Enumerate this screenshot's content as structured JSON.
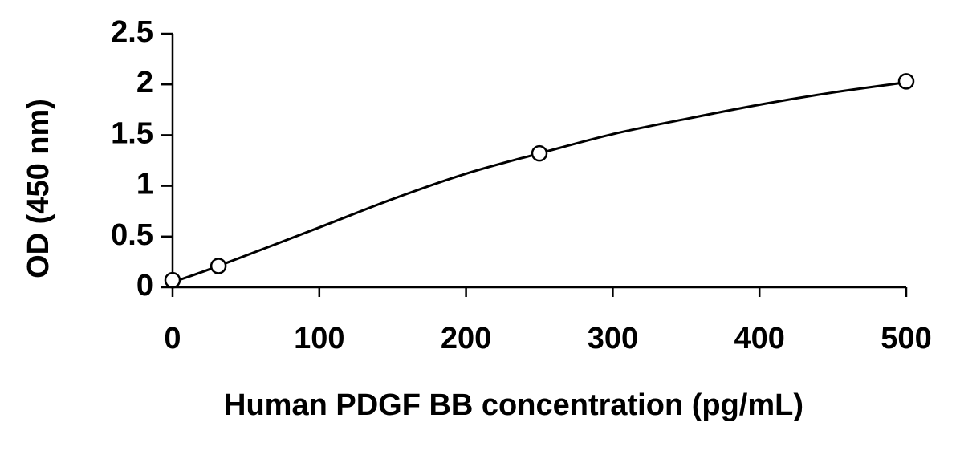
{
  "chart_data": {
    "type": "scatter",
    "x_label": "Human PDGF BB concentration (pg/mL)",
    "y_label": "OD (450 nm)",
    "x": [
      0,
      31.25,
      250,
      500
    ],
    "values": [
      0.07,
      0.21,
      1.32,
      2.03
    ],
    "color": "#000000",
    "curve": {
      "x": [
        0,
        31.25,
        100,
        150,
        200,
        250,
        300,
        350,
        400,
        450,
        500
      ],
      "values": [
        0.05,
        0.21,
        0.59,
        0.87,
        1.12,
        1.32,
        1.51,
        1.66,
        1.8,
        1.92,
        2.02
      ]
    },
    "xlim": [
      0,
      500
    ],
    "xticks": [
      0,
      100,
      200,
      300,
      400,
      500
    ],
    "ylim": [
      0,
      2.5
    ],
    "yticks": [
      0,
      0.5,
      1,
      1.5,
      2,
      2.5
    ],
    "grid": false
  }
}
